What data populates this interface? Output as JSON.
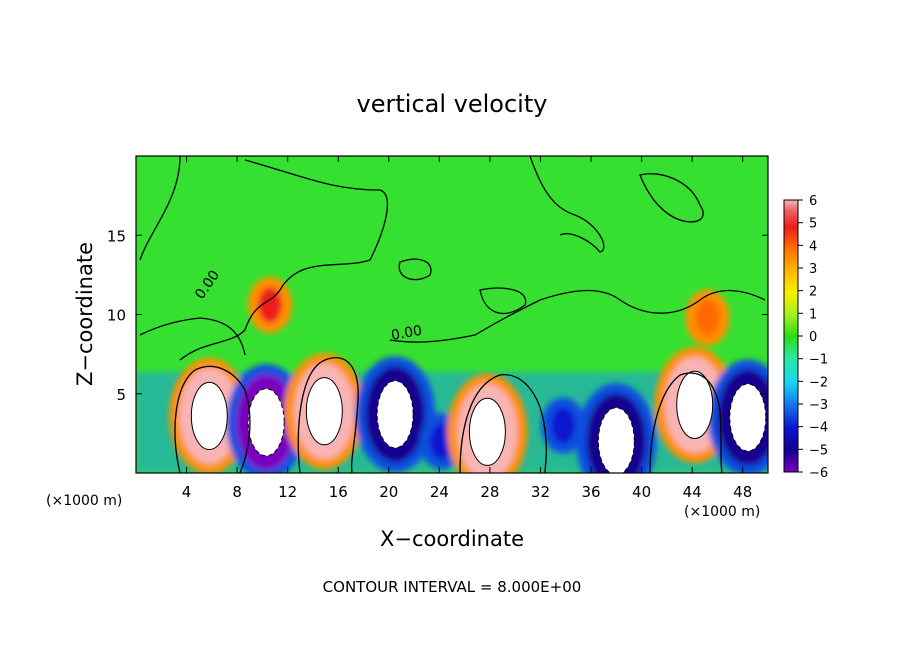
{
  "chart_data": {
    "type": "heatmap",
    "title": "vertical velocity",
    "xlabel": "X−coordinate",
    "ylabel": "Z−coordinate",
    "x_unit_left": "(×1000 m)",
    "x_unit_right": "(×1000 m)",
    "footer": "CONTOUR INTERVAL = 8.000E+00",
    "contour_label": "0.00",
    "xlim": [
      0,
      50
    ],
    "ylim": [
      0,
      20
    ],
    "x_ticks": [
      "4",
      "8",
      "12",
      "16",
      "20",
      "24",
      "28",
      "32",
      "36",
      "40",
      "44",
      "48"
    ],
    "x_tick_values": [
      4,
      8,
      12,
      16,
      20,
      24,
      28,
      32,
      36,
      40,
      44,
      48
    ],
    "y_ticks": [
      "5",
      "10",
      "15"
    ],
    "y_tick_values": [
      5,
      10,
      15
    ],
    "colorbar": {
      "min": -6,
      "max": 6,
      "labels": [
        "6",
        "5",
        "4",
        "3",
        "2",
        "1",
        "0",
        "−1",
        "−2",
        "−3",
        "−4",
        "−5",
        "−6"
      ],
      "colors": [
        "#f8b4b4",
        "#f06060",
        "#ee1c1c",
        "#ff6a00",
        "#ffb000",
        "#f5f000",
        "#a8f020",
        "#2cdc14",
        "#28e8a0",
        "#18d8f0",
        "#1478f0",
        "#0a14d0",
        "#120090",
        "#7a00c0"
      ]
    },
    "cells": [
      {
        "x": 5.8,
        "z": 3.6,
        "w": -0.8,
        "value": 6.5
      },
      {
        "x": 10.3,
        "z": 3.2,
        "w": -0.9,
        "value": -6.5
      },
      {
        "x": 14.9,
        "z": 3.9,
        "w": -0.9,
        "value": 6.5
      },
      {
        "x": 20.5,
        "z": 3.7,
        "w": -1.0,
        "value": -5.5
      },
      {
        "x": 24.2,
        "z": 2.0,
        "w": -0.6,
        "value": -5.0
      },
      {
        "x": 27.8,
        "z": 2.6,
        "w": -0.9,
        "value": 6.5
      },
      {
        "x": 33.8,
        "z": 3.0,
        "w": -1.0,
        "value": -5.0
      },
      {
        "x": 38.0,
        "z": 2.0,
        "w": -0.6,
        "value": -5.5
      },
      {
        "x": 44.2,
        "z": 4.3,
        "w": -1.0,
        "value": 6.5
      },
      {
        "x": 48.4,
        "z": 3.5,
        "w": -0.8,
        "value": -6.0
      },
      {
        "x": 10.6,
        "z": 10.6,
        "w": -0.5,
        "value": 4.5
      },
      {
        "x": 45.2,
        "z": 9.8,
        "w": -0.5,
        "value": 4.0
      }
    ]
  }
}
